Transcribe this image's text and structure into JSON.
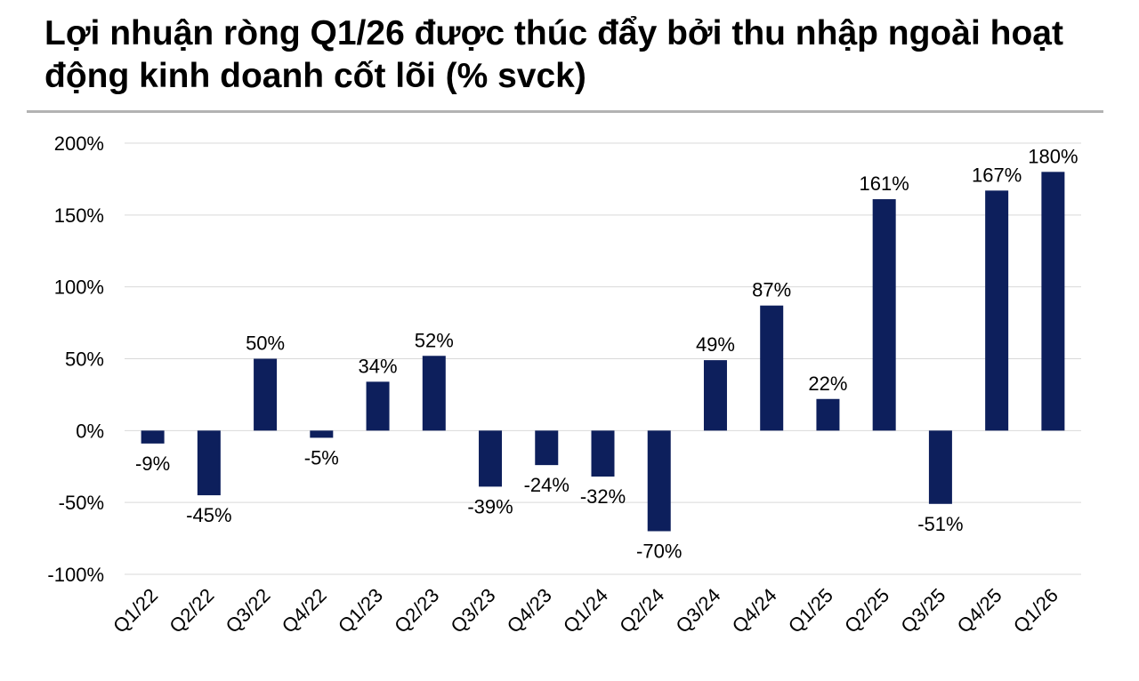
{
  "title": "Lợi nhuận ròng Q1/26 được thúc đẩy bởi thu nhập ngoài hoạt động kinh doanh cốt lõi (% svck)",
  "chart_data": {
    "type": "bar",
    "categories": [
      "Q1/22",
      "Q2/22",
      "Q3/22",
      "Q4/22",
      "Q1/23",
      "Q2/23",
      "Q3/23",
      "Q4/23",
      "Q1/24",
      "Q2/24",
      "Q3/24",
      "Q4/24",
      "Q1/25",
      "Q2/25",
      "Q3/25",
      "Q4/25",
      "Q1/26"
    ],
    "values": [
      -9,
      -45,
      50,
      -5,
      34,
      52,
      -39,
      -24,
      -32,
      -70,
      49,
      87,
      22,
      161,
      -51,
      167,
      180
    ],
    "data_labels": [
      "-9%",
      "-45%",
      "50%",
      "-5%",
      "34%",
      "52%",
      "-39%",
      "-24%",
      "-32%",
      "-70%",
      "49%",
      "87%",
      "22%",
      "161%",
      "-51%",
      "167%",
      "180%"
    ],
    "ylim": [
      -100,
      200
    ],
    "yticks": [
      200,
      150,
      100,
      50,
      0,
      -50,
      -100
    ],
    "ytick_labels": [
      "200%",
      "150%",
      "100%",
      "50%",
      "0%",
      "-50%",
      "-100%"
    ],
    "xlabel": "",
    "ylabel": "",
    "grid": true,
    "bar_color": "#0d1f5c",
    "grid_color": "#d9d9d9"
  }
}
